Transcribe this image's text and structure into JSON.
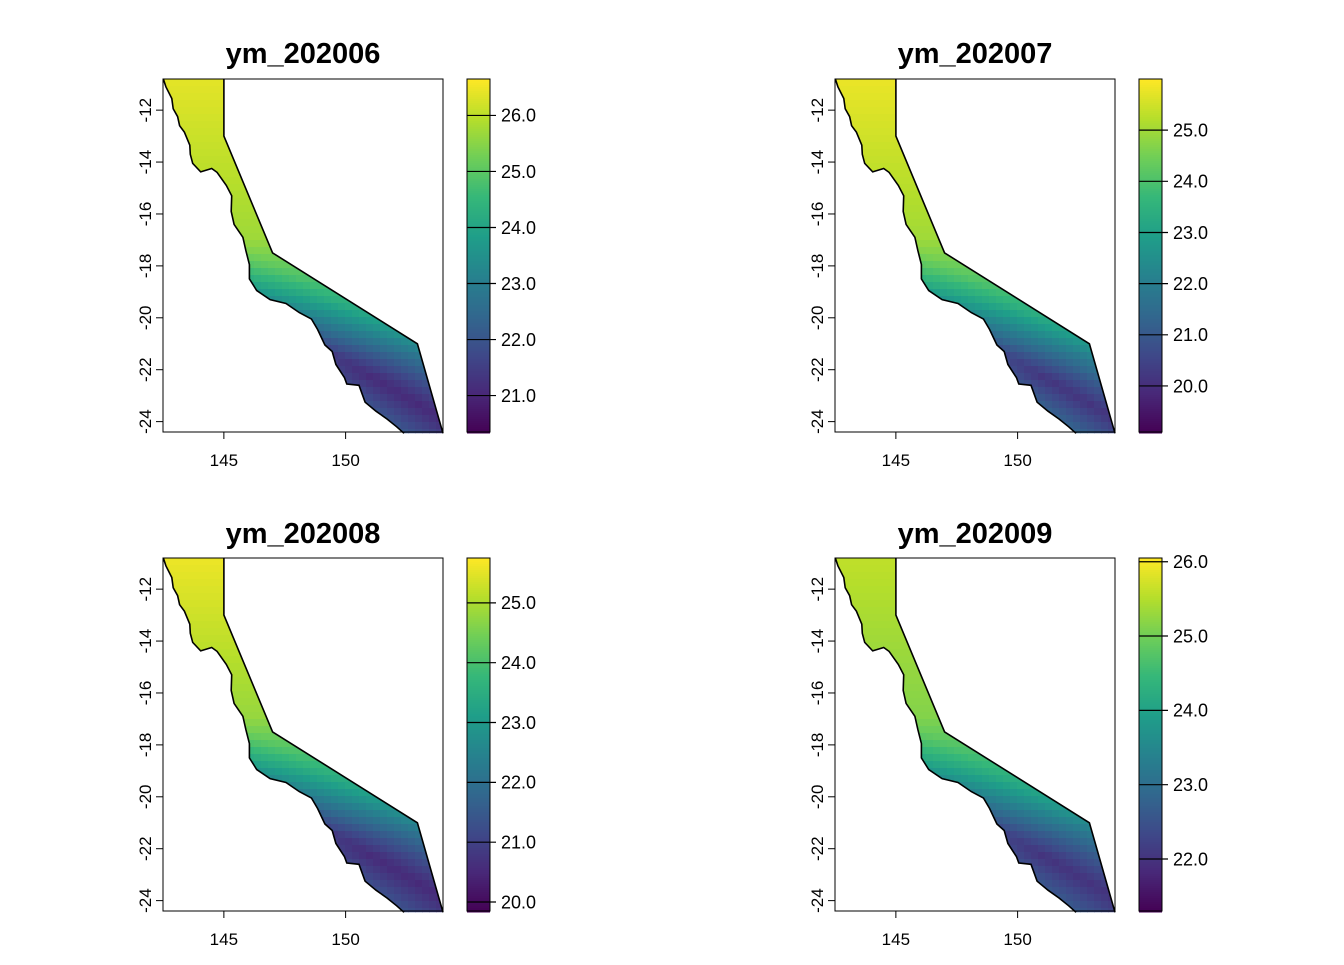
{
  "figure": {
    "colormap": "viridis",
    "colors": [
      "#440154",
      "#482878",
      "#3e4989",
      "#31688e",
      "#26828e",
      "#1f9e89",
      "#35b779",
      "#6ece58",
      "#b5de2b",
      "#fde725"
    ]
  },
  "chart_data": [
    {
      "type": "heatmap",
      "title": "ym_202006",
      "x_ticks": [
        "145",
        "150"
      ],
      "x_tick_values": [
        145,
        150
      ],
      "y_ticks": [
        "-12",
        "-14",
        "-16",
        "-18",
        "-20",
        "-22",
        "-24"
      ],
      "y_tick_values": [
        -12,
        -14,
        -16,
        -18,
        -20,
        -22,
        -24
      ],
      "xlim": [
        142.5,
        154.0
      ],
      "ylim": [
        -24.4,
        -10.8
      ],
      "colorbar": {
        "range": [
          20.35,
          26.65
        ],
        "ticks": [
          "21.0",
          "22.0",
          "23.0",
          "24.0",
          "25.0",
          "26.0"
        ],
        "tick_values": [
          21.0,
          22.0,
          23.0,
          24.0,
          25.0,
          26.0
        ]
      },
      "gradient": {
        "north": 26.4,
        "south_inshore": 25.2,
        "mid_shelf": 23.6,
        "offshore_south": 22.6,
        "coastal_south": 20.8
      }
    },
    {
      "type": "heatmap",
      "title": "ym_202007",
      "x_ticks": [
        "145",
        "150"
      ],
      "x_tick_values": [
        145,
        150
      ],
      "y_ticks": [
        "-12",
        "-14",
        "-16",
        "-18",
        "-20",
        "-22",
        "-24"
      ],
      "y_tick_values": [
        -12,
        -14,
        -16,
        -18,
        -20,
        -22,
        -24
      ],
      "xlim": [
        142.5,
        154.0
      ],
      "ylim": [
        -24.4,
        -10.8
      ],
      "colorbar": {
        "range": [
          19.1,
          26.0
        ],
        "ticks": [
          "20.0",
          "21.0",
          "22.0",
          "23.0",
          "24.0",
          "25.0"
        ],
        "tick_values": [
          20.0,
          21.0,
          22.0,
          23.0,
          24.0,
          25.0
        ]
      },
      "gradient": {
        "north": 25.8,
        "south_inshore": 24.4,
        "mid_shelf": 23.0,
        "offshore_south": 22.0,
        "coastal_south": 19.8
      }
    },
    {
      "type": "heatmap",
      "title": "ym_202008",
      "x_ticks": [
        "145",
        "150"
      ],
      "x_tick_values": [
        145,
        150
      ],
      "y_ticks": [
        "-12",
        "-14",
        "-16",
        "-18",
        "-20",
        "-22",
        "-24"
      ],
      "y_tick_values": [
        -12,
        -14,
        -16,
        -18,
        -20,
        -22,
        -24
      ],
      "xlim": [
        142.5,
        154.0
      ],
      "ylim": [
        -24.4,
        -10.8
      ],
      "colorbar": {
        "range": [
          19.85,
          25.75
        ],
        "ticks": [
          "20.0",
          "21.0",
          "22.0",
          "23.0",
          "24.0",
          "25.0"
        ],
        "tick_values": [
          20.0,
          21.0,
          22.0,
          23.0,
          24.0,
          25.0
        ]
      },
      "gradient": {
        "north": 25.6,
        "south_inshore": 24.2,
        "mid_shelf": 22.8,
        "offshore_south": 21.8,
        "coastal_south": 20.3
      }
    },
    {
      "type": "heatmap",
      "title": "ym_202009",
      "x_ticks": [
        "145",
        "150"
      ],
      "x_tick_values": [
        145,
        150
      ],
      "y_ticks": [
        "-12",
        "-14",
        "-16",
        "-18",
        "-20",
        "-22",
        "-24"
      ],
      "y_tick_values": [
        -12,
        -14,
        -16,
        -18,
        -20,
        -22,
        -24
      ],
      "xlim": [
        142.5,
        154.0
      ],
      "ylim": [
        -24.4,
        -10.8
      ],
      "colorbar": {
        "range": [
          21.3,
          26.05
        ],
        "ticks": [
          "22.0",
          "23.0",
          "24.0",
          "25.0",
          "26.0"
        ],
        "tick_values": [
          22.0,
          23.0,
          24.0,
          25.0,
          26.0
        ]
      },
      "gradient": {
        "north": 25.6,
        "south_inshore": 24.8,
        "mid_shelf": 23.8,
        "offshore_south": 23.0,
        "coastal_south": 21.8
      }
    }
  ]
}
